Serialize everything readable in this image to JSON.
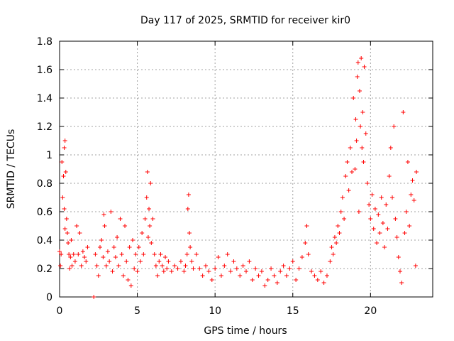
{
  "chart_data": {
    "type": "scatter",
    "title": "Day 117 of 2025, SRMTID for receiver kir0",
    "xlabel": "GPS time / hours",
    "ylabel": "SRMTID / TECUs",
    "xlim": [
      0,
      24
    ],
    "ylim": [
      0,
      1.8
    ],
    "x_ticks": [
      0,
      5,
      10,
      15,
      20
    ],
    "x_tick_labels": [
      "0",
      "5",
      "10",
      "15",
      "20"
    ],
    "y_ticks": [
      0,
      0.2,
      0.4,
      0.6,
      0.8,
      1.0,
      1.2,
      1.4,
      1.6,
      1.8
    ],
    "y_tick_labels": [
      "0",
      "0.2",
      "0.4",
      "0.6",
      "0.8",
      "1",
      "1.2",
      "1.4",
      "1.6",
      "1.8"
    ],
    "grid": true,
    "marker": "+",
    "color": "#ff0000",
    "series": [
      {
        "name": "SRMTID",
        "points": [
          [
            0.0,
            0.32
          ],
          [
            0.05,
            0.22
          ],
          [
            0.1,
            0.3
          ],
          [
            0.15,
            0.95
          ],
          [
            0.2,
            0.7
          ],
          [
            0.25,
            0.85
          ],
          [
            0.3,
            1.05
          ],
          [
            0.3,
            0.62
          ],
          [
            0.35,
            1.1
          ],
          [
            0.35,
            0.48
          ],
          [
            0.4,
            0.88
          ],
          [
            0.45,
            0.55
          ],
          [
            0.5,
            0.45
          ],
          [
            0.55,
            0.38
          ],
          [
            0.6,
            0.3
          ],
          [
            0.65,
            0.2
          ],
          [
            0.7,
            0.28
          ],
          [
            0.75,
            0.4
          ],
          [
            0.8,
            0.22
          ],
          [
            0.9,
            0.3
          ],
          [
            1.0,
            0.25
          ],
          [
            1.1,
            0.5
          ],
          [
            1.2,
            0.3
          ],
          [
            1.3,
            0.45
          ],
          [
            1.4,
            0.22
          ],
          [
            1.5,
            0.32
          ],
          [
            1.6,
            0.28
          ],
          [
            1.7,
            0.25
          ],
          [
            1.8,
            0.35
          ],
          [
            2.2,
            0.0
          ],
          [
            2.3,
            0.3
          ],
          [
            2.4,
            0.22
          ],
          [
            2.5,
            0.15
          ],
          [
            2.6,
            0.35
          ],
          [
            2.7,
            0.4
          ],
          [
            2.8,
            0.28
          ],
          [
            2.85,
            0.58
          ],
          [
            2.9,
            0.5
          ],
          [
            3.0,
            0.22
          ],
          [
            3.1,
            0.32
          ],
          [
            3.2,
            0.25
          ],
          [
            3.3,
            0.6
          ],
          [
            3.4,
            0.18
          ],
          [
            3.5,
            0.35
          ],
          [
            3.6,
            0.28
          ],
          [
            3.7,
            0.42
          ],
          [
            3.8,
            0.22
          ],
          [
            3.9,
            0.55
          ],
          [
            4.0,
            0.3
          ],
          [
            4.1,
            0.15
          ],
          [
            4.2,
            0.5
          ],
          [
            4.3,
            0.25
          ],
          [
            4.4,
            0.12
          ],
          [
            4.5,
            0.35
          ],
          [
            4.6,
            0.08
          ],
          [
            4.7,
            0.4
          ],
          [
            4.8,
            0.2
          ],
          [
            4.9,
            0.3
          ],
          [
            5.0,
            0.18
          ],
          [
            5.1,
            0.35
          ],
          [
            5.2,
            0.25
          ],
          [
            5.3,
            0.45
          ],
          [
            5.4,
            0.3
          ],
          [
            5.5,
            0.55
          ],
          [
            5.6,
            0.7
          ],
          [
            5.65,
            0.88
          ],
          [
            5.7,
            0.42
          ],
          [
            5.75,
            0.62
          ],
          [
            5.8,
            0.5
          ],
          [
            5.85,
            0.8
          ],
          [
            5.9,
            0.38
          ],
          [
            6.0,
            0.55
          ],
          [
            6.1,
            0.3
          ],
          [
            6.2,
            0.22
          ],
          [
            6.3,
            0.15
          ],
          [
            6.4,
            0.25
          ],
          [
            6.5,
            0.3
          ],
          [
            6.6,
            0.22
          ],
          [
            6.7,
            0.18
          ],
          [
            6.8,
            0.28
          ],
          [
            6.9,
            0.2
          ],
          [
            7.0,
            0.25
          ],
          [
            7.2,
            0.18
          ],
          [
            7.4,
            0.22
          ],
          [
            7.6,
            0.2
          ],
          [
            7.8,
            0.25
          ],
          [
            8.0,
            0.18
          ],
          [
            8.1,
            0.22
          ],
          [
            8.2,
            0.3
          ],
          [
            8.25,
            0.62
          ],
          [
            8.3,
            0.72
          ],
          [
            8.35,
            0.45
          ],
          [
            8.4,
            0.35
          ],
          [
            8.5,
            0.25
          ],
          [
            8.6,
            0.2
          ],
          [
            8.8,
            0.3
          ],
          [
            9.0,
            0.2
          ],
          [
            9.2,
            0.15
          ],
          [
            9.4,
            0.22
          ],
          [
            9.6,
            0.18
          ],
          [
            9.8,
            0.12
          ],
          [
            10.0,
            0.2
          ],
          [
            10.2,
            0.28
          ],
          [
            10.4,
            0.15
          ],
          [
            10.6,
            0.22
          ],
          [
            10.8,
            0.3
          ],
          [
            11.0,
            0.18
          ],
          [
            11.2,
            0.25
          ],
          [
            11.4,
            0.2
          ],
          [
            11.6,
            0.15
          ],
          [
            11.8,
            0.22
          ],
          [
            12.0,
            0.18
          ],
          [
            12.2,
            0.25
          ],
          [
            12.4,
            0.12
          ],
          [
            12.6,
            0.2
          ],
          [
            12.8,
            0.15
          ],
          [
            13.0,
            0.18
          ],
          [
            13.2,
            0.08
          ],
          [
            13.4,
            0.12
          ],
          [
            13.6,
            0.2
          ],
          [
            13.8,
            0.15
          ],
          [
            14.0,
            0.1
          ],
          [
            14.2,
            0.18
          ],
          [
            14.4,
            0.22
          ],
          [
            14.6,
            0.15
          ],
          [
            14.8,
            0.2
          ],
          [
            15.0,
            0.25
          ],
          [
            15.2,
            0.12
          ],
          [
            15.4,
            0.2
          ],
          [
            15.6,
            0.28
          ],
          [
            15.8,
            0.38
          ],
          [
            15.9,
            0.5
          ],
          [
            16.0,
            0.3
          ],
          [
            16.2,
            0.18
          ],
          [
            16.4,
            0.15
          ],
          [
            16.6,
            0.12
          ],
          [
            16.8,
            0.18
          ],
          [
            17.0,
            0.1
          ],
          [
            17.2,
            0.15
          ],
          [
            17.4,
            0.25
          ],
          [
            17.5,
            0.35
          ],
          [
            17.6,
            0.3
          ],
          [
            17.7,
            0.42
          ],
          [
            17.8,
            0.38
          ],
          [
            17.9,
            0.5
          ],
          [
            18.0,
            0.45
          ],
          [
            18.1,
            0.6
          ],
          [
            18.2,
            0.7
          ],
          [
            18.3,
            0.55
          ],
          [
            18.4,
            0.85
          ],
          [
            18.5,
            0.95
          ],
          [
            18.6,
            0.75
          ],
          [
            18.7,
            1.05
          ],
          [
            18.8,
            0.88
          ],
          [
            18.9,
            1.4
          ],
          [
            19.0,
            0.9
          ],
          [
            19.05,
            1.25
          ],
          [
            19.1,
            1.1
          ],
          [
            19.15,
            1.55
          ],
          [
            19.2,
            1.65
          ],
          [
            19.25,
            0.6
          ],
          [
            19.3,
            1.45
          ],
          [
            19.35,
            1.2
          ],
          [
            19.4,
            1.68
          ],
          [
            19.45,
            1.05
          ],
          [
            19.5,
            1.3
          ],
          [
            19.55,
            0.95
          ],
          [
            19.6,
            1.62
          ],
          [
            19.7,
            1.15
          ],
          [
            19.8,
            0.8
          ],
          [
            19.9,
            0.65
          ],
          [
            20.0,
            0.55
          ],
          [
            20.1,
            0.72
          ],
          [
            20.2,
            0.48
          ],
          [
            20.3,
            0.62
          ],
          [
            20.4,
            0.38
          ],
          [
            20.5,
            0.58
          ],
          [
            20.6,
            0.45
          ],
          [
            20.7,
            0.7
          ],
          [
            20.8,
            0.52
          ],
          [
            20.9,
            0.35
          ],
          [
            21.0,
            0.65
          ],
          [
            21.1,
            0.48
          ],
          [
            21.2,
            0.85
          ],
          [
            21.3,
            1.05
          ],
          [
            21.4,
            0.7
          ],
          [
            21.5,
            1.2
          ],
          [
            21.6,
            0.55
          ],
          [
            21.7,
            0.42
          ],
          [
            21.8,
            0.28
          ],
          [
            21.9,
            0.18
          ],
          [
            22.0,
            0.1
          ],
          [
            22.1,
            1.3
          ],
          [
            22.2,
            0.45
          ],
          [
            22.3,
            0.6
          ],
          [
            22.4,
            0.95
          ],
          [
            22.5,
            0.5
          ],
          [
            22.6,
            0.72
          ],
          [
            22.7,
            0.82
          ],
          [
            22.8,
            0.68
          ],
          [
            22.9,
            0.22
          ],
          [
            22.95,
            0.88
          ]
        ]
      }
    ]
  }
}
